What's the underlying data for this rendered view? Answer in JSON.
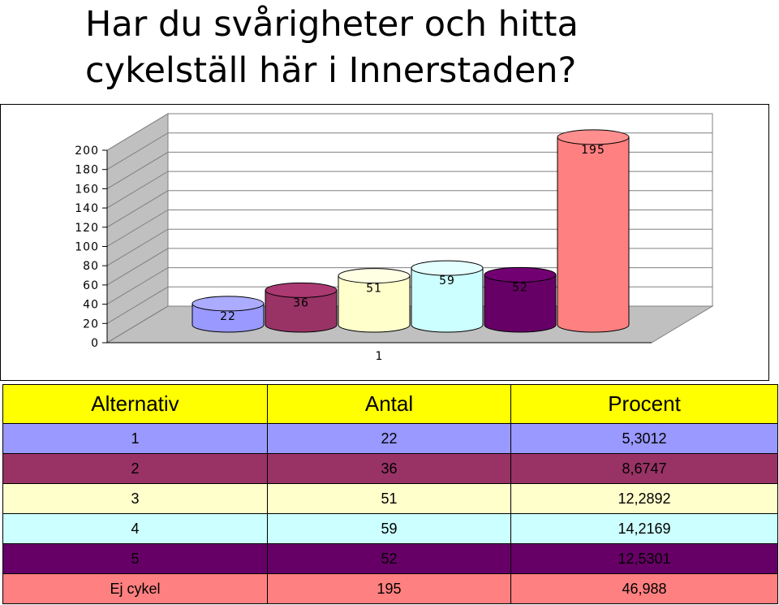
{
  "title": [
    "Har du svårigheter och hitta",
    "cykelställ här i Innerstaden?"
  ],
  "chart_data": {
    "type": "bar",
    "categories": [
      "1"
    ],
    "series": [
      {
        "values": [
          22
        ],
        "color": "#9999ff"
      },
      {
        "values": [
          36
        ],
        "color": "#993366"
      },
      {
        "values": [
          51
        ],
        "color": "#ffffcc"
      },
      {
        "values": [
          59
        ],
        "color": "#ccffff"
      },
      {
        "values": [
          52
        ],
        "color": "#660066"
      },
      {
        "values": [
          195
        ],
        "color": "#ff8080"
      }
    ],
    "ylim": [
      0,
      200
    ],
    "yticks": [
      "0",
      "20",
      "40",
      "60",
      "80",
      "100",
      "120",
      "140",
      "160",
      "180",
      "200"
    ],
    "grid": true,
    "three_d": true,
    "data_labels": true
  },
  "table": {
    "headers": [
      "Alternativ",
      "Antal",
      "Procent"
    ],
    "header_color": "#ffff00",
    "rows": [
      {
        "cells": [
          "1",
          "22",
          "5,3012"
        ],
        "color": "#9999ff"
      },
      {
        "cells": [
          "2",
          "36",
          "8,6747"
        ],
        "color": "#993366"
      },
      {
        "cells": [
          "3",
          "51",
          "12,2892"
        ],
        "color": "#ffffcc"
      },
      {
        "cells": [
          "4",
          "59",
          "14,2169"
        ],
        "color": "#ccffff"
      },
      {
        "cells": [
          "5",
          "52",
          "12,5301"
        ],
        "color": "#660066"
      },
      {
        "cells": [
          "Ej cykel",
          "195",
          "46,988"
        ],
        "color": "#ff8080"
      }
    ]
  }
}
